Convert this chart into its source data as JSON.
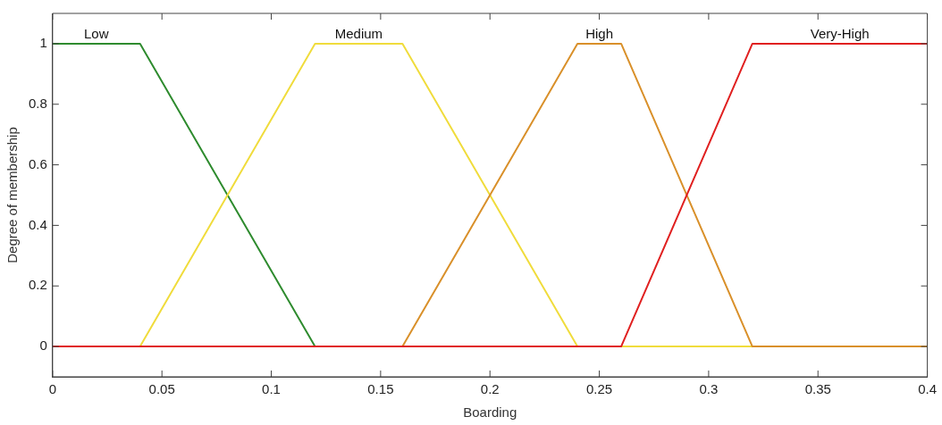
{
  "chart_data": {
    "type": "line",
    "xlabel": "Boarding",
    "ylabel": "Degree of membership",
    "xlim": [
      0,
      0.4
    ],
    "xticks": [
      0,
      0.05,
      0.1,
      0.15,
      0.2,
      0.25,
      0.3,
      0.35,
      0.4
    ],
    "ylim": [
      -0.1,
      1.1
    ],
    "yticks": [
      0,
      0.2,
      0.4,
      0.6,
      0.8,
      1
    ],
    "grid": false,
    "legend": false,
    "marker": "none",
    "line_style": "solid",
    "series": [
      {
        "name": "Low",
        "color": "#2e8b2e",
        "x": [
          0,
          0.04,
          0.12
        ],
        "values": [
          1,
          1,
          0
        ]
      },
      {
        "name": "Medium",
        "color": "#f0dc3c",
        "x": [
          0,
          0.04,
          0.12,
          0.16,
          0.24,
          0.4
        ],
        "values": [
          0,
          0,
          1,
          1,
          0,
          0
        ]
      },
      {
        "name": "High",
        "color": "#d9902a",
        "x": [
          0,
          0.16,
          0.24,
          0.26,
          0.32,
          0.4
        ],
        "values": [
          0,
          0,
          1,
          1,
          0,
          0
        ]
      },
      {
        "name": "Very-High",
        "color": "#e02020",
        "x": [
          0,
          0.26,
          0.32,
          0.4
        ],
        "values": [
          0,
          0,
          1,
          1
        ]
      }
    ]
  }
}
